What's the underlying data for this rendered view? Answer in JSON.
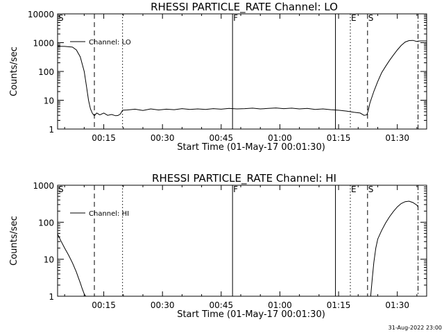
{
  "footer": {
    "timestamp": "31-Aug-2022 23:00"
  },
  "chart_data": [
    {
      "type": "line",
      "title": "RHESSI PARTICLE_RATE Channel: LO",
      "xlabel": "Start Time (01-May-17 00:01:30)",
      "ylabel": "Counts/sec",
      "y_scale": "log",
      "xlim": [
        3.2,
        97.5
      ],
      "ylim": [
        1,
        10000
      ],
      "x_unit": "minutes after 00:00 UT",
      "x_ticks": [
        {
          "x": 15,
          "label": "00:15"
        },
        {
          "x": 30,
          "label": "00:30"
        },
        {
          "x": 45,
          "label": "00:45"
        },
        {
          "x": 60,
          "label": "01:00"
        },
        {
          "x": 75,
          "label": "01:15"
        },
        {
          "x": 90,
          "label": "01:30"
        }
      ],
      "y_ticks": [
        {
          "y": 1,
          "label": "1"
        },
        {
          "y": 10,
          "label": "10"
        },
        {
          "y": 100,
          "label": "100"
        },
        {
          "y": 1000,
          "label": "1000"
        },
        {
          "y": 10000,
          "label": "10000"
        }
      ],
      "legend": {
        "label": "Channel: LO",
        "position": "top-left"
      },
      "event_lines": [
        {
          "x": 3.2,
          "style": "dashdot",
          "label": "S"
        },
        {
          "x": 12.6,
          "style": "dashed",
          "label": ""
        },
        {
          "x": 19.8,
          "style": "dotted",
          "label": ""
        },
        {
          "x": 47.9,
          "style": "solid",
          "label": "F"
        },
        {
          "x": 74.2,
          "style": "solid",
          "label": ""
        },
        {
          "x": 78.0,
          "style": "dotted",
          "label": "E"
        },
        {
          "x": 82.4,
          "style": "dashed",
          "label": "S"
        },
        {
          "x": 95.3,
          "style": "dashdot",
          "label": ""
        }
      ],
      "series": [
        {
          "name": "Channel: LO",
          "x": [
            3.2,
            5,
            7,
            8,
            9,
            10,
            10.6,
            11.1,
            11.6,
            12.1,
            12.6,
            13.2,
            14,
            15,
            16,
            17,
            18,
            18.6,
            19.2,
            19.8,
            21,
            23,
            25,
            27,
            29,
            31,
            33,
            35,
            37,
            39,
            41,
            43,
            45,
            47,
            49,
            51,
            53,
            55,
            57,
            59,
            61,
            63,
            65,
            67,
            69,
            71,
            73,
            75,
            77,
            79,
            80.5,
            81.5,
            82.2,
            82.5,
            83,
            84,
            85,
            86,
            87,
            88,
            89,
            90,
            91,
            92,
            93,
            94,
            95,
            95.3,
            96,
            97.5
          ],
          "y": [
            750,
            740,
            700,
            560,
            320,
            100,
            30,
            10,
            5,
            3.5,
            2.9,
            3.6,
            3.1,
            3.6,
            3.0,
            3.2,
            2.9,
            2.95,
            3.3,
            4.5,
            4.6,
            4.9,
            4.4,
            5.0,
            4.6,
            4.9,
            4.7,
            5.1,
            4.8,
            5.0,
            4.8,
            5.1,
            4.9,
            5.2,
            5.0,
            5.1,
            5.3,
            5.0,
            5.2,
            5.4,
            5.1,
            5.3,
            5.0,
            5.2,
            4.8,
            5.0,
            4.7,
            4.5,
            4.2,
            3.8,
            3.6,
            3.0,
            3.1,
            4.0,
            8,
            20,
            45,
            90,
            150,
            240,
            370,
            560,
            800,
            1050,
            1180,
            1200,
            1100,
            1130,
            1150,
            1150
          ]
        }
      ]
    },
    {
      "type": "line",
      "title": "RHESSI PARTICLE_RATE Channel: HI",
      "xlabel": "Start Time (01-May-17 00:01:30)",
      "ylabel": "Counts/sec",
      "y_scale": "log",
      "xlim": [
        3.2,
        97.5
      ],
      "ylim": [
        1,
        1000
      ],
      "x_unit": "minutes after 00:00 UT",
      "x_ticks": [
        {
          "x": 15,
          "label": "00:15"
        },
        {
          "x": 30,
          "label": "00:30"
        },
        {
          "x": 45,
          "label": "00:45"
        },
        {
          "x": 60,
          "label": "01:00"
        },
        {
          "x": 75,
          "label": "01:15"
        },
        {
          "x": 90,
          "label": "01:30"
        }
      ],
      "y_ticks": [
        {
          "y": 1,
          "label": "1"
        },
        {
          "y": 10,
          "label": "10"
        },
        {
          "y": 100,
          "label": "100"
        },
        {
          "y": 1000,
          "label": "1000"
        }
      ],
      "legend": {
        "label": "Channel: HI",
        "position": "top-left"
      },
      "event_lines": [
        {
          "x": 3.2,
          "style": "dashdot",
          "label": "S"
        },
        {
          "x": 12.6,
          "style": "dashed",
          "label": ""
        },
        {
          "x": 19.8,
          "style": "dotted",
          "label": ""
        },
        {
          "x": 47.9,
          "style": "solid",
          "label": "F"
        },
        {
          "x": 74.2,
          "style": "solid",
          "label": ""
        },
        {
          "x": 78.0,
          "style": "dotted",
          "label": "E"
        },
        {
          "x": 82.4,
          "style": "dashed",
          "label": "S"
        },
        {
          "x": 95.3,
          "style": "dashdot",
          "label": ""
        }
      ],
      "series": [
        {
          "name": "Channel: HI",
          "x": [
            3.2,
            4,
            5,
            6,
            7,
            8,
            8.5,
            9,
            9.5,
            10,
            10.4,
            83.2,
            83.6,
            84,
            84.5,
            85,
            86,
            87,
            88,
            89,
            90,
            91,
            92,
            93,
            94,
            95,
            95.3
          ],
          "y": [
            48,
            32,
            20,
            13,
            8,
            4.5,
            3.2,
            2.3,
            1.6,
            1.15,
            1.0,
            1.0,
            3,
            8,
            20,
            35,
            60,
            95,
            140,
            195,
            260,
            320,
            360,
            370,
            340,
            290,
            260
          ]
        }
      ]
    }
  ]
}
